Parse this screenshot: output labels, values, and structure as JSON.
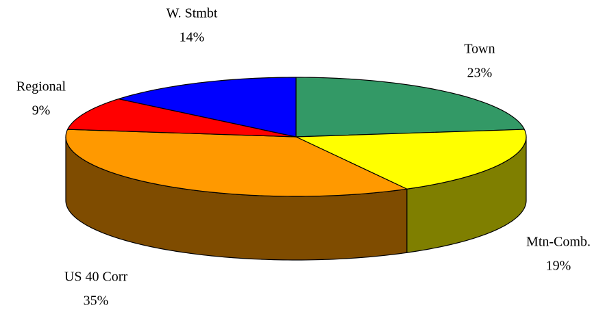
{
  "chart_data": {
    "type": "pie3d",
    "categories": [
      "Town",
      "Mtn-Comb.",
      "US 40 Corr",
      "Regional",
      "W. Stmbt"
    ],
    "values": [
      23,
      19,
      35,
      9,
      14
    ],
    "value_labels": [
      "23%",
      "19%",
      "35%",
      "9%",
      "14%"
    ],
    "colors": [
      "#339966",
      "#ffff00",
      "#ff9900",
      "#ff0000",
      "#0000ff"
    ]
  }
}
